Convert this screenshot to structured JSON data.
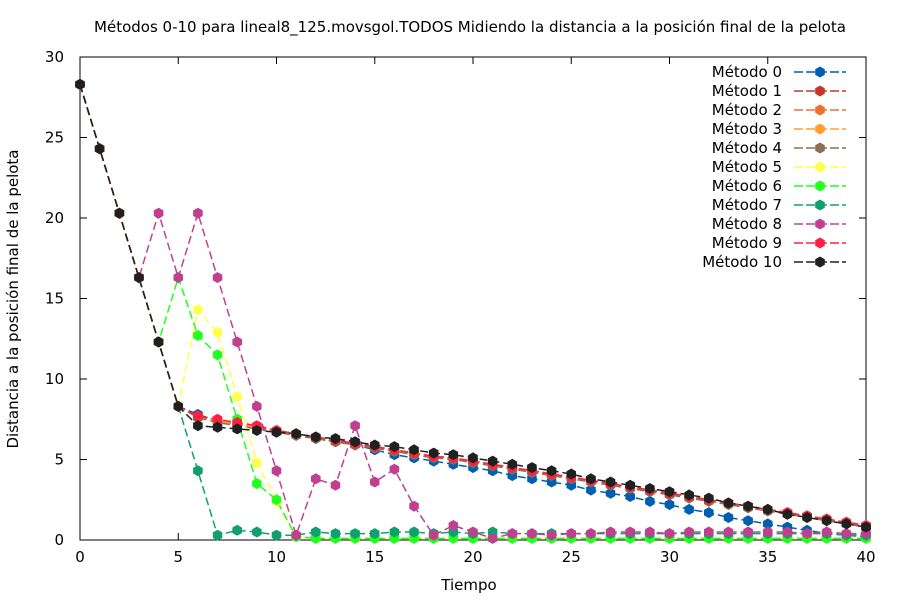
{
  "chart_data": {
    "type": "line",
    "title": "Métodos 0-10 para lineal8_125.movsgol.TODOS Midiendo la distancia a la posición final de la pelota",
    "xlabel": "Tiempo",
    "ylabel": "Distancia a la posición final de la pelota",
    "xlim": [
      0,
      40
    ],
    "ylim": [
      0,
      30
    ],
    "xticks": [
      0,
      5,
      10,
      15,
      20,
      25,
      30,
      35,
      40
    ],
    "yticks": [
      0,
      5,
      10,
      15,
      20,
      25,
      30
    ],
    "legend_position": "top-right",
    "x": [
      0,
      1,
      2,
      3,
      4,
      5,
      6,
      7,
      8,
      9,
      10,
      11,
      12,
      13,
      14,
      15,
      16,
      17,
      18,
      19,
      20,
      21,
      22,
      23,
      24,
      25,
      26,
      27,
      28,
      29,
      30,
      31,
      32,
      33,
      34,
      35,
      36,
      37,
      38,
      39,
      40
    ],
    "series": [
      {
        "name": "Método 0",
        "color": "#005fb0",
        "values": [
          28.3,
          24.3,
          20.3,
          16.3,
          12.3,
          8.3,
          7.8,
          7.4,
          7.2,
          7.0,
          6.7,
          6.5,
          6.3,
          6.1,
          5.9,
          5.6,
          5.3,
          5.1,
          4.9,
          4.7,
          4.5,
          4.3,
          4.0,
          3.8,
          3.6,
          3.4,
          3.1,
          2.9,
          2.7,
          2.4,
          2.2,
          1.9,
          1.7,
          1.4,
          1.2,
          1.0,
          0.8,
          0.6,
          0.4,
          0.3,
          0.2
        ]
      },
      {
        "name": "Método 1",
        "color": "#c0392b",
        "values": [
          28.3,
          24.3,
          20.3,
          16.3,
          12.3,
          8.3,
          7.7,
          7.4,
          7.2,
          7.0,
          6.8,
          6.6,
          6.4,
          6.2,
          6.0,
          5.8,
          5.6,
          5.4,
          5.2,
          5.1,
          4.9,
          4.7,
          4.5,
          4.3,
          4.1,
          3.9,
          3.7,
          3.5,
          3.3,
          3.1,
          2.9,
          2.7,
          2.5,
          2.3,
          2.1,
          1.9,
          1.7,
          1.5,
          1.3,
          1.1,
          0.9
        ]
      },
      {
        "name": "Método 2",
        "color": "#f07030",
        "values": [
          28.3,
          24.3,
          20.3,
          16.3,
          12.3,
          8.3,
          7.6,
          7.4,
          7.2,
          7.0,
          6.8,
          6.6,
          6.4,
          6.2,
          6.0,
          5.8,
          5.6,
          5.4,
          5.2,
          5.1,
          4.9,
          4.7,
          4.5,
          4.3,
          4.1,
          3.9,
          3.7,
          3.5,
          3.3,
          3.1,
          2.9,
          2.7,
          2.5,
          2.3,
          2.1,
          1.9,
          1.7,
          1.5,
          1.3,
          1.1,
          0.9
        ]
      },
      {
        "name": "Método 3",
        "color": "#ffa030",
        "values": [
          28.3,
          24.3,
          20.3,
          16.3,
          12.3,
          8.3,
          7.6,
          7.4,
          7.2,
          7.0,
          6.8,
          6.6,
          6.4,
          6.2,
          6.0,
          5.8,
          5.6,
          5.4,
          5.2,
          5.1,
          4.9,
          4.7,
          4.5,
          4.3,
          4.1,
          3.9,
          3.7,
          3.5,
          3.3,
          3.1,
          2.9,
          2.7,
          2.5,
          2.3,
          2.1,
          1.9,
          1.7,
          1.5,
          1.3,
          1.1,
          0.9
        ]
      },
      {
        "name": "Método 4",
        "color": "#8c7050",
        "values": [
          28.3,
          24.3,
          20.3,
          16.3,
          12.3,
          8.3,
          7.6,
          7.3,
          7.1,
          6.9,
          6.7,
          6.5,
          6.3,
          6.1,
          5.9,
          5.7,
          5.5,
          5.3,
          5.1,
          5.0,
          4.8,
          4.6,
          4.4,
          4.2,
          4.0,
          3.8,
          3.6,
          3.4,
          3.2,
          3.0,
          2.8,
          2.6,
          2.4,
          2.2,
          2.0,
          1.8,
          1.6,
          1.4,
          1.2,
          1.0,
          0.8
        ]
      },
      {
        "name": "Método 5",
        "color": "#ffff50",
        "values": [
          28.3,
          24.3,
          20.3,
          16.3,
          12.3,
          8.3,
          14.3,
          12.9,
          8.9,
          4.8,
          2.4,
          0.2,
          0.1,
          0.1,
          0.1,
          0.1,
          0.1,
          0.1,
          0.1,
          0.1,
          0.1,
          0.1,
          0.1,
          0.1,
          0.1,
          0.1,
          0.1,
          0.1,
          0.1,
          0.1,
          0.1,
          0.1,
          0.1,
          0.1,
          0.1,
          0.1,
          0.1,
          0.1,
          0.1,
          0.1,
          0.1
        ]
      },
      {
        "name": "Método 6",
        "color": "#20ff20",
        "values": [
          28.3,
          24.3,
          20.3,
          16.3,
          12.3,
          16.3,
          12.7,
          11.5,
          7.5,
          3.5,
          2.5,
          0.2,
          0.1,
          0.1,
          0.1,
          0.1,
          0.1,
          0.1,
          0.1,
          0.1,
          0.1,
          0.1,
          0.1,
          0.1,
          0.1,
          0.1,
          0.1,
          0.1,
          0.1,
          0.1,
          0.1,
          0.1,
          0.1,
          0.1,
          0.1,
          0.1,
          0.1,
          0.1,
          0.1,
          0.1,
          0.1
        ]
      },
      {
        "name": "Método 7",
        "color": "#10a070",
        "values": [
          28.3,
          24.3,
          20.3,
          16.3,
          12.3,
          8.3,
          4.3,
          0.3,
          0.6,
          0.5,
          0.3,
          0.3,
          0.5,
          0.4,
          0.4,
          0.4,
          0.5,
          0.5,
          0.4,
          0.5,
          0.4,
          0.5,
          0.4,
          0.4,
          0.4,
          0.4,
          0.4,
          0.4,
          0.4,
          0.4,
          0.4,
          0.4,
          0.4,
          0.4,
          0.4,
          0.4,
          0.4,
          0.4,
          0.4,
          0.3,
          0.3
        ]
      },
      {
        "name": "Método 8",
        "color": "#c04090",
        "values": [
          28.3,
          24.3,
          20.3,
          16.3,
          20.3,
          16.3,
          20.3,
          16.3,
          12.3,
          8.3,
          4.3,
          0.3,
          3.8,
          3.4,
          7.1,
          3.6,
          4.4,
          2.1,
          0.3,
          0.9,
          0.5,
          0.1,
          0.4,
          0.4,
          0.3,
          0.4,
          0.4,
          0.5,
          0.5,
          0.5,
          0.4,
          0.5,
          0.5,
          0.5,
          0.5,
          0.5,
          0.5,
          0.4,
          0.5,
          0.4,
          0.4
        ]
      },
      {
        "name": "Método 9",
        "color": "#ff2040",
        "values": [
          28.3,
          24.3,
          20.3,
          16.3,
          12.3,
          8.3,
          7.7,
          7.5,
          7.3,
          7.1,
          6.8,
          6.6,
          6.4,
          6.2,
          6.0,
          5.8,
          5.6,
          5.4,
          5.2,
          5.1,
          4.9,
          4.7,
          4.5,
          4.3,
          4.1,
          3.9,
          3.7,
          3.5,
          3.3,
          3.1,
          2.9,
          2.7,
          2.5,
          2.3,
          2.1,
          1.9,
          1.7,
          1.5,
          1.3,
          1.1,
          0.9
        ]
      },
      {
        "name": "Método 10",
        "color": "#202020",
        "values": [
          28.3,
          24.3,
          20.3,
          16.3,
          12.3,
          8.3,
          7.1,
          7.0,
          6.9,
          6.8,
          6.7,
          6.6,
          6.4,
          6.3,
          6.1,
          5.9,
          5.8,
          5.6,
          5.4,
          5.3,
          5.1,
          4.9,
          4.7,
          4.5,
          4.3,
          4.1,
          3.8,
          3.6,
          3.4,
          3.2,
          3.0,
          2.8,
          2.6,
          2.3,
          2.1,
          1.9,
          1.6,
          1.4,
          1.2,
          1.0,
          0.8
        ]
      }
    ]
  }
}
